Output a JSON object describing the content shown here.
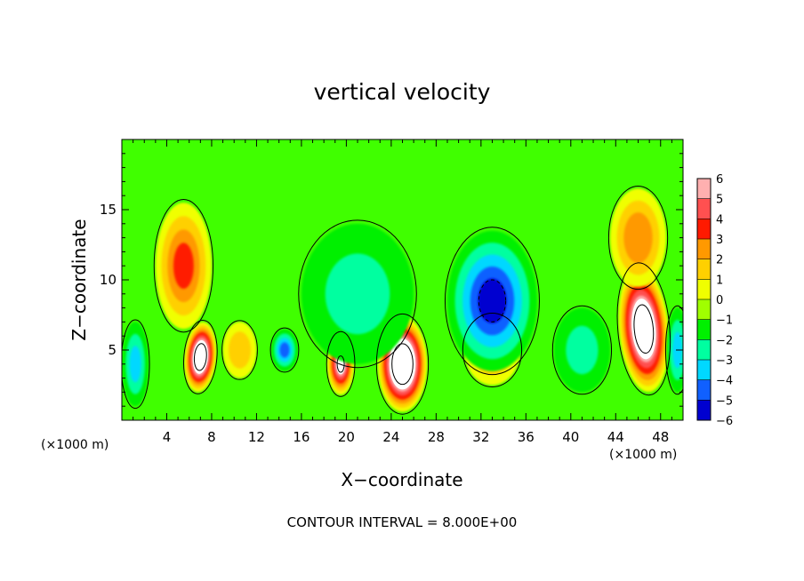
{
  "chart_data": {
    "type": "heatmap",
    "title": "vertical velocity",
    "xlabel": "X−coordinate",
    "ylabel": "Z−coordinate",
    "x_unit_left": "(×1000 m)",
    "x_unit_right": "(×1000 m)",
    "footer": "CONTOUR INTERVAL = 8.000E+00",
    "xlim": [
      0,
      50
    ],
    "ylim": [
      0,
      20
    ],
    "x_ticks": [
      4,
      8,
      12,
      16,
      20,
      24,
      28,
      32,
      36,
      40,
      44,
      48
    ],
    "x_tick_labels": [
      "4",
      "8",
      "12",
      "16",
      "20",
      "24",
      "28",
      "32",
      "36",
      "40",
      "44",
      "48"
    ],
    "y_ticks": [
      5,
      10,
      15
    ],
    "y_tick_labels": [
      "5",
      "10",
      "15"
    ],
    "colorbar": {
      "levels": [
        6,
        5,
        4,
        3,
        2,
        1,
        0,
        -1,
        -2,
        -3,
        -4,
        -5,
        -6
      ],
      "labels": [
        "6",
        "5",
        "4",
        "3",
        "2",
        "1",
        "0",
        "−1",
        "−2",
        "−3",
        "−4",
        "−5",
        "−6"
      ],
      "colors": [
        "#ffb0b0",
        "#ff5050",
        "#ff1a00",
        "#ff9900",
        "#ffd000",
        "#f0ff00",
        "#a0ff00",
        "#00f000",
        "#00ffa0",
        "#00d8ff",
        "#1060ff",
        "#0000d0",
        "#8000a0"
      ]
    },
    "features": [
      {
        "kind": "updraft",
        "x": 7,
        "z": 4.5,
        "rx": 1.4,
        "rz": 2.5,
        "tilt": 5,
        "peak": 9
      },
      {
        "kind": "updraft",
        "x": 5.5,
        "z": 11,
        "rx": 2.5,
        "rz": 4.5,
        "tilt": 0,
        "peak": 4
      },
      {
        "kind": "updraft",
        "x": 25,
        "z": 4,
        "rx": 2.2,
        "rz": 3.4,
        "tilt": 0,
        "peak": 10
      },
      {
        "kind": "updraft",
        "x": 19.5,
        "z": 4,
        "rx": 1.2,
        "rz": 2.2,
        "tilt": 0,
        "peak": 7
      },
      {
        "kind": "updraft",
        "x": 46.5,
        "z": 6.5,
        "rx": 2.2,
        "rz": 4.5,
        "tilt": -5,
        "peak": 9
      },
      {
        "kind": "updraft",
        "x": 46,
        "z": 13,
        "rx": 2.5,
        "rz": 3.5,
        "tilt": 0,
        "peak": 3.5
      },
      {
        "kind": "updraft",
        "x": 33,
        "z": 5,
        "rx": 2.5,
        "rz": 2.5,
        "tilt": 0,
        "peak": 3
      },
      {
        "kind": "updraft",
        "x": 10.5,
        "z": 5,
        "rx": 1.5,
        "rz": 2,
        "tilt": 0,
        "peak": 2.5
      },
      {
        "kind": "downdraft",
        "x": 33,
        "z": 8.5,
        "rx": 4,
        "rz": 5,
        "tilt": 0,
        "peak": -5
      },
      {
        "kind": "downdraft",
        "x": 21,
        "z": 9,
        "rx": 5,
        "rz": 5,
        "tilt": 0,
        "peak": -2
      },
      {
        "kind": "downdraft",
        "x": 1.2,
        "z": 4,
        "rx": 1.2,
        "rz": 3,
        "tilt": 0,
        "peak": -3
      },
      {
        "kind": "downdraft",
        "x": 14.5,
        "z": 5,
        "rx": 1.2,
        "rz": 1.5,
        "tilt": 0,
        "peak": -4
      },
      {
        "kind": "downdraft",
        "x": 41,
        "z": 5,
        "rx": 2.5,
        "rz": 3,
        "tilt": 0,
        "peak": -2
      },
      {
        "kind": "downdraft",
        "x": 49.5,
        "z": 5,
        "rx": 1,
        "rz": 3,
        "tilt": 0,
        "peak": -3
      }
    ],
    "grid": false,
    "legend": "colorbar-right"
  }
}
